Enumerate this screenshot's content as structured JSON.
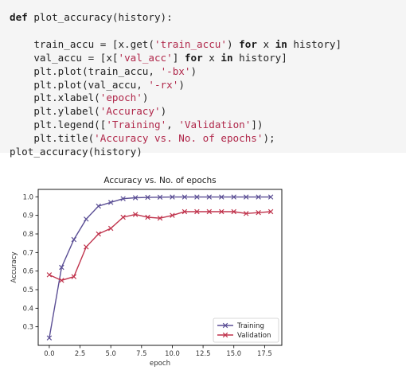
{
  "code_cell": {
    "keyword_def": "def",
    "func_sig": " plot_accuracy(history):",
    "line1_a": "    train_accu = [x.get(",
    "line1_str": "'train_accu'",
    "line1_b": ") ",
    "line1_kw1": "for",
    "line1_c": " x ",
    "line1_kw2": "in",
    "line1_d": " history]",
    "line2_a": "    val_accu = [x[",
    "line2_str": "'val_acc'",
    "line2_b": "] ",
    "line2_kw1": "for",
    "line2_c": " x ",
    "line2_kw2": "in",
    "line2_d": " history]",
    "line3_a": "    plt.plot(train_accu, ",
    "line3_str": "'-bx'",
    "line3_b": ")",
    "line4_a": "    plt.plot(val_accu, ",
    "line4_str": "'-rx'",
    "line4_b": ")",
    "line5_a": "    plt.xlabel(",
    "line5_str": "'epoch'",
    "line5_b": ")",
    "line6_a": "    plt.ylabel(",
    "line6_str": "'Accuracy'",
    "line6_b": ")",
    "line7_a": "    plt.legend([",
    "line7_str1": "'Training'",
    "line7_b": ", ",
    "line7_str2": "'Validation'",
    "line7_c": "])",
    "line8_a": "    plt.title(",
    "line8_str": "'Accuracy vs. No. of epochs'",
    "line8_b": ");",
    "line9": "plot_accuracy(history)"
  },
  "chart_data": {
    "type": "line",
    "title": "Accuracy vs. No. of epochs",
    "xlabel": "epoch",
    "ylabel": "Accuracy",
    "xlim": [
      -0.9,
      18.9
    ],
    "ylim": [
      0.2,
      1.04
    ],
    "x_ticks": [
      0.0,
      2.5,
      5.0,
      7.5,
      10.0,
      12.5,
      15.0,
      17.5
    ],
    "x_tick_labels": [
      "0.0",
      "2.5",
      "5.0",
      "7.5",
      "10.0",
      "12.5",
      "15.0",
      "17.5"
    ],
    "y_ticks": [
      0.3,
      0.4,
      0.5,
      0.6,
      0.7,
      0.8,
      0.9,
      1.0
    ],
    "y_tick_labels": [
      "0.3",
      "0.4",
      "0.5",
      "0.6",
      "0.7",
      "0.8",
      "0.9",
      "1.0"
    ],
    "legend_position": "lower right",
    "grid": false,
    "x": [
      0,
      1,
      2,
      3,
      4,
      5,
      6,
      7,
      8,
      9,
      10,
      11,
      12,
      13,
      14,
      15,
      16,
      17,
      18
    ],
    "series": [
      {
        "name": "Training",
        "color": "#5b4f95",
        "marker": "x",
        "values": [
          0.24,
          0.62,
          0.77,
          0.88,
          0.95,
          0.97,
          0.99,
          0.995,
          0.997,
          0.998,
          0.999,
          0.999,
          0.999,
          0.999,
          0.999,
          0.999,
          0.999,
          0.999,
          0.999
        ]
      },
      {
        "name": "Validation",
        "color": "#c0344d",
        "marker": "x",
        "values": [
          0.58,
          0.55,
          0.57,
          0.73,
          0.8,
          0.83,
          0.89,
          0.905,
          0.89,
          0.885,
          0.9,
          0.92,
          0.92,
          0.92,
          0.92,
          0.92,
          0.91,
          0.915,
          0.92
        ]
      }
    ]
  }
}
